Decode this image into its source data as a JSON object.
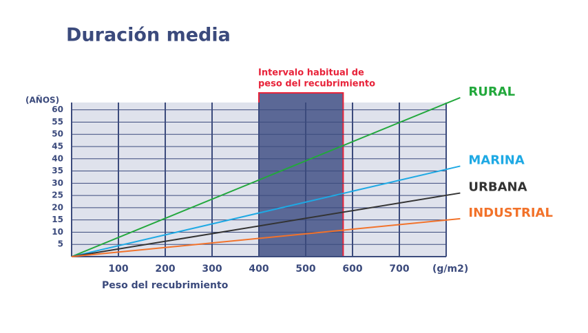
{
  "chart_data": {
    "type": "line",
    "title": "Duración media",
    "y_label": "(AÑOS)",
    "x_label": "Peso del recubrimiento",
    "x_unit": "(g/m2)",
    "annotation": [
      "Intervalo habitual de",
      "peso del recubrimiento"
    ],
    "band": [
      400,
      580
    ],
    "band_color": "#5b6896",
    "band_border": "#e8233a",
    "x": [
      0,
      830
    ],
    "series": [
      {
        "name": "RURAL",
        "color": "#22a83c",
        "values": [
          0,
          65
        ]
      },
      {
        "name": "MARINA",
        "color": "#1ea9e4",
        "values": [
          0,
          37
        ]
      },
      {
        "name": "URBANA",
        "color": "#333333",
        "values": [
          0,
          26
        ]
      },
      {
        "name": "INDUSTRIAL",
        "color": "#f2722a",
        "values": [
          0,
          15.5
        ]
      }
    ],
    "xlim": [
      0,
      800
    ],
    "xticks": [
      100,
      200,
      300,
      400,
      500,
      600,
      700
    ],
    "ylim": [
      0,
      63
    ],
    "yticks": [
      5,
      10,
      15,
      20,
      25,
      30,
      35,
      40,
      45,
      50,
      55,
      60
    ],
    "grid": true
  }
}
